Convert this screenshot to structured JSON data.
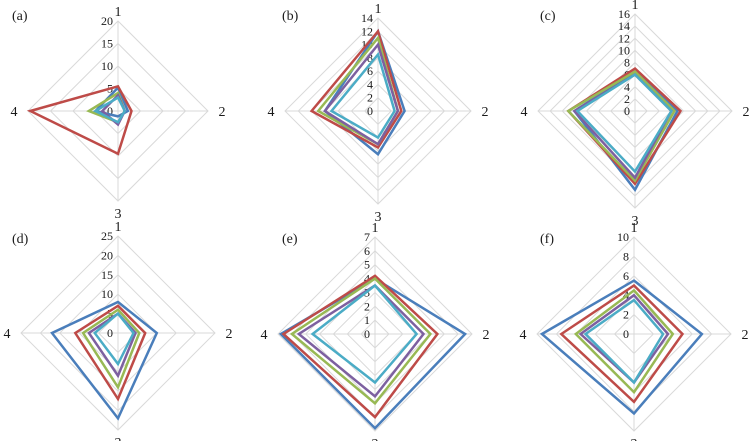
{
  "chart_data": [
    {
      "type": "radar",
      "panel_label": "(a)",
      "axes": [
        "1",
        "2",
        "3",
        "4"
      ],
      "ticks": [
        "0",
        "5",
        "10",
        "15",
        "20"
      ],
      "rmax": 20,
      "series": [
        {
          "color": "#4a7ebb",
          "values": [
            5.2,
            2.2,
            1.2,
            5
          ]
        },
        {
          "color": "#be4b48",
          "values": [
            5.5,
            3,
            9.5,
            19.5
          ]
        },
        {
          "color": "#98b954",
          "values": [
            4,
            1.5,
            2.5,
            6.5
          ]
        },
        {
          "color": "#7d60a0",
          "values": [
            3.5,
            1.5,
            3,
            3.5
          ]
        },
        {
          "color": "#4bacc6",
          "values": [
            3,
            1.5,
            2.5,
            5
          ]
        }
      ]
    },
    {
      "type": "radar",
      "panel_label": "(b)",
      "axes": [
        "1",
        "2",
        "3",
        "4"
      ],
      "ticks": [
        "0",
        "2",
        "4",
        "6",
        "8",
        "10",
        "12",
        "14"
      ],
      "rmax": 14,
      "series": [
        {
          "color": "#4a7ebb",
          "values": [
            12,
            4,
            6.5,
            8
          ]
        },
        {
          "color": "#be4b48",
          "values": [
            12,
            3.5,
            5.5,
            10
          ]
        },
        {
          "color": "#98b954",
          "values": [
            11,
            3,
            5,
            9
          ]
        },
        {
          "color": "#7d60a0",
          "values": [
            10,
            3,
            5,
            8
          ]
        },
        {
          "color": "#4bacc6",
          "values": [
            8.5,
            2.5,
            4,
            7
          ]
        }
      ]
    },
    {
      "type": "radar",
      "panel_label": "(c)",
      "axes": [
        "1",
        "2",
        "3",
        "4"
      ],
      "ticks": [
        "0",
        "2",
        "4",
        "6",
        "8",
        "10",
        "12",
        "14",
        "16"
      ],
      "rmax": 16,
      "series": [
        {
          "color": "#4a7ebb",
          "values": [
            6.5,
            7,
            13,
            10
          ]
        },
        {
          "color": "#be4b48",
          "values": [
            7,
            7.5,
            12,
            11
          ]
        },
        {
          "color": "#98b954",
          "values": [
            6.5,
            6.5,
            11.5,
            11
          ]
        },
        {
          "color": "#7d60a0",
          "values": [
            6,
            6,
            11,
            10
          ]
        },
        {
          "color": "#4bacc6",
          "values": [
            6,
            6,
            10,
            9.5
          ]
        }
      ]
    },
    {
      "type": "radar",
      "panel_label": "(d)",
      "axes": [
        "1",
        "2",
        "3",
        "4"
      ],
      "ticks": [
        "0",
        "5",
        "10",
        "15",
        "20",
        "25"
      ],
      "rmax": 25,
      "series": [
        {
          "color": "#4a7ebb",
          "values": [
            8,
            10,
            22,
            17
          ]
        },
        {
          "color": "#be4b48",
          "values": [
            7,
            7,
            17,
            11
          ]
        },
        {
          "color": "#98b954",
          "values": [
            6,
            5.5,
            14,
            9
          ]
        },
        {
          "color": "#7d60a0",
          "values": [
            5,
            4.5,
            11,
            7.5
          ]
        },
        {
          "color": "#4bacc6",
          "values": [
            5,
            4,
            8,
            6
          ]
        }
      ]
    },
    {
      "type": "radar",
      "panel_label": "(e)",
      "axes": [
        "1",
        "2",
        "3",
        "4"
      ],
      "ticks": [
        "0",
        "1",
        "2",
        "3",
        "4",
        "5",
        "6",
        "7"
      ],
      "rmax": 7,
      "series": [
        {
          "color": "#4a7ebb",
          "values": [
            4,
            6.5,
            6.8,
            6.8
          ]
        },
        {
          "color": "#be4b48",
          "values": [
            4.2,
            4.5,
            6,
            6.6
          ]
        },
        {
          "color": "#98b954",
          "values": [
            4,
            4,
            5,
            6
          ]
        },
        {
          "color": "#7d60a0",
          "values": [
            3.5,
            3.5,
            4.5,
            5.5
          ]
        },
        {
          "color": "#4bacc6",
          "values": [
            3.5,
            3,
            3.5,
            4.5
          ]
        }
      ]
    },
    {
      "type": "radar",
      "panel_label": "(f)",
      "axes": [
        "1",
        "2",
        "3",
        "4"
      ],
      "ticks": [
        "0",
        "2",
        "4",
        "6",
        "8",
        "10"
      ],
      "rmax": 10,
      "series": [
        {
          "color": "#4a7ebb",
          "values": [
            5.5,
            7,
            8.2,
            9.5
          ]
        },
        {
          "color": "#be4b48",
          "values": [
            5,
            5,
            7,
            7.5
          ]
        },
        {
          "color": "#98b954",
          "values": [
            4.5,
            4,
            6,
            6
          ]
        },
        {
          "color": "#7d60a0",
          "values": [
            4,
            3.5,
            5,
            5.5
          ]
        },
        {
          "color": "#4bacc6",
          "values": [
            3.5,
            3,
            5,
            5
          ]
        }
      ]
    }
  ]
}
